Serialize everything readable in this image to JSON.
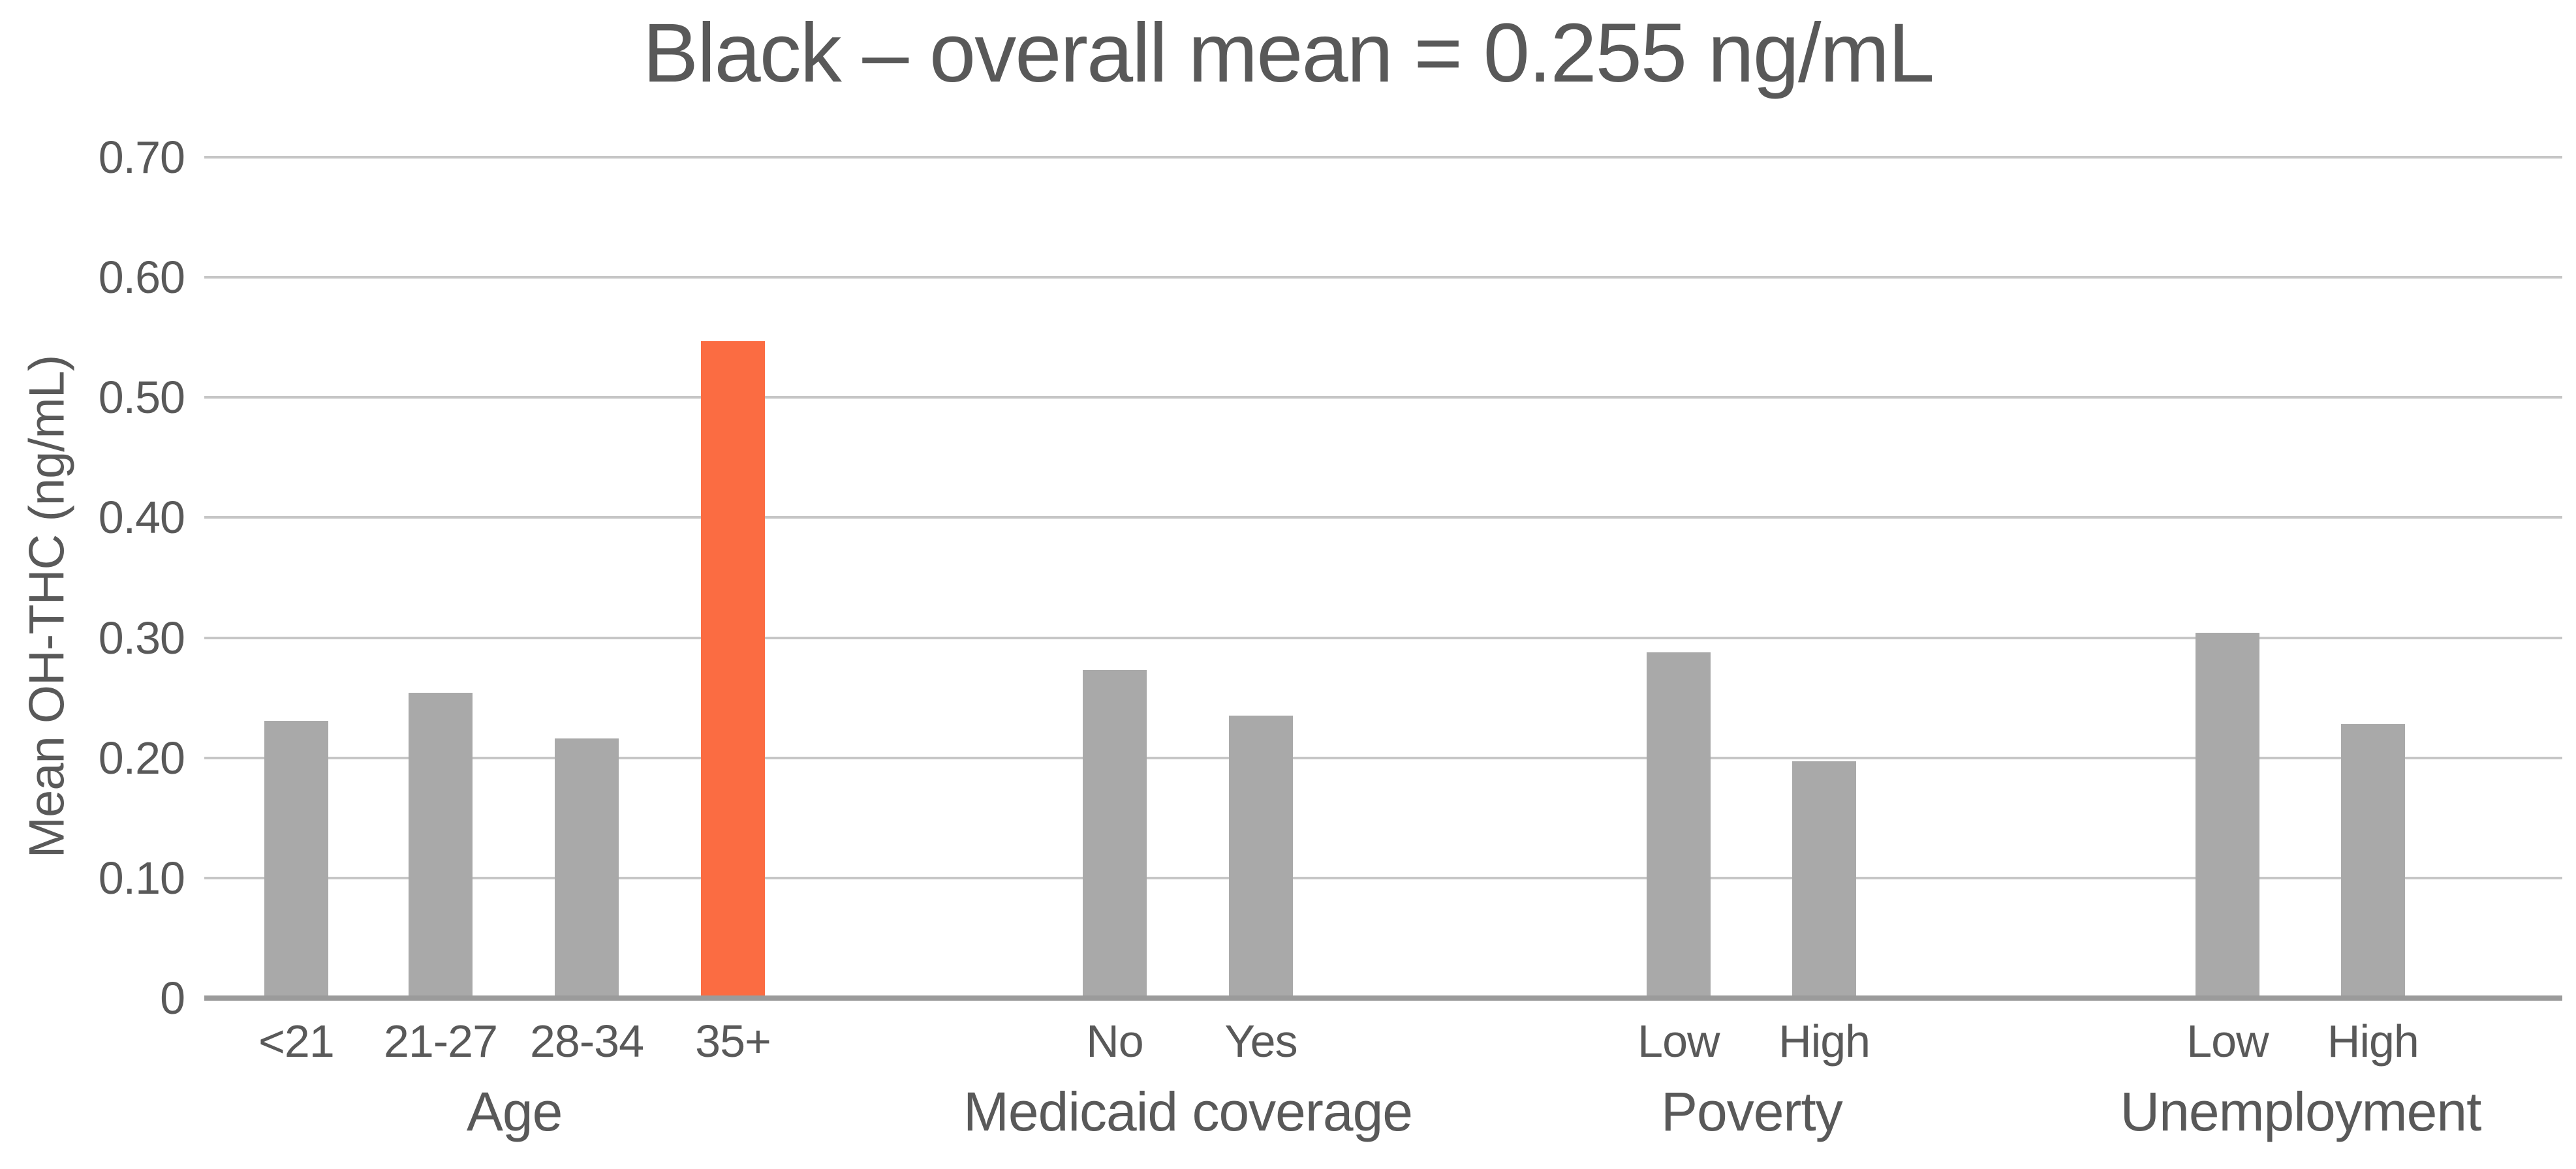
{
  "title": "Black – overall mean = 0.255 ng/mL",
  "colors": {
    "bar_default": "#A9A9A9",
    "bar_highlight": "#FB6C42",
    "gridline": "#C6C6C6",
    "axis_line": "#9B9B9B",
    "text": "#595959"
  },
  "chart_data": {
    "type": "bar",
    "title": "Black – overall mean = 0.255 ng/mL",
    "subtitle": "",
    "xlabel": "",
    "ylabel": "Mean OH-THC (ng/mL)",
    "ylim": [
      0,
      0.7
    ],
    "ytick_step": 0.1,
    "yticks": [
      "0.70",
      "0.60",
      "0.50",
      "0.40",
      "0.30",
      "0.20",
      "0.10",
      "0"
    ],
    "grid": true,
    "legend": "none",
    "overall_mean_ng_ml": 0.255,
    "highlight_meaning": "35+ age group shown in orange",
    "groups": [
      {
        "label": "Age",
        "categories": [
          "<21",
          "21-27",
          "28-34",
          "35+"
        ],
        "values": [
          0.231,
          0.254,
          0.216,
          0.547
        ],
        "highlight": [
          false,
          false,
          false,
          true
        ]
      },
      {
        "label": "Medicaid coverage",
        "categories": [
          "No",
          "Yes"
        ],
        "values": [
          0.273,
          0.235
        ],
        "highlight": [
          false,
          false
        ]
      },
      {
        "label": "Poverty",
        "categories": [
          "Low",
          "High"
        ],
        "values": [
          0.288,
          0.197
        ],
        "highlight": [
          false,
          false
        ]
      },
      {
        "label": "Unemployment",
        "categories": [
          "Low",
          "High"
        ],
        "values": [
          0.304,
          0.228
        ],
        "highlight": [
          false,
          false
        ]
      }
    ]
  }
}
